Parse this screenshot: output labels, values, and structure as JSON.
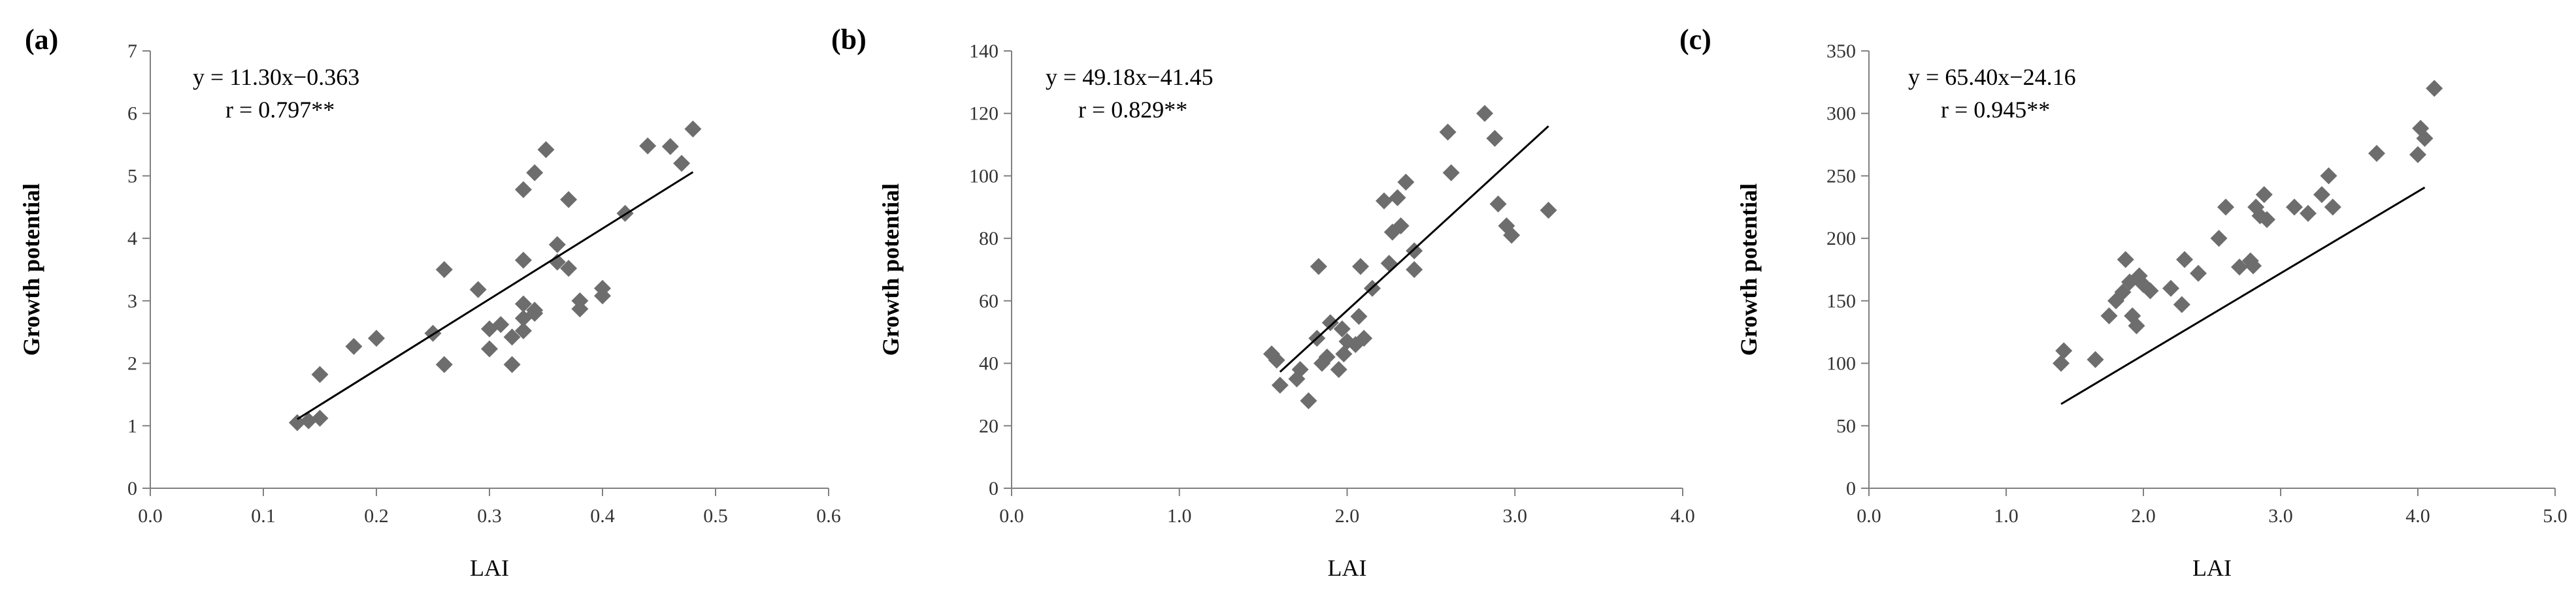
{
  "colors": {
    "point": "#6d6d6d",
    "axis": "#808080",
    "fit": "#000000"
  },
  "chart_data": [
    {
      "type": "scatter",
      "panel_label": "(a)",
      "xlabel": "LAI",
      "ylabel": "Growth potential",
      "xlim": [
        0,
        0.6
      ],
      "ylim": [
        0,
        7
      ],
      "x_ticks": [
        0,
        0.1,
        0.2,
        0.3,
        0.4,
        0.5,
        0.6
      ],
      "x_tick_labels": [
        "0.0",
        "0.1",
        "0.2",
        "0.3",
        "0.4",
        "0.5",
        "0.6"
      ],
      "y_ticks": [
        0,
        1,
        2,
        3,
        4,
        5,
        6,
        7
      ],
      "y_tick_labels": [
        "0",
        "1",
        "2",
        "3",
        "4",
        "5",
        "6",
        "7"
      ],
      "equation": "y = 11.30x−0.363",
      "r_text": "r = 0.797**",
      "fit": {
        "slope": 11.3,
        "intercept": -0.363,
        "x_range": [
          0.13,
          0.48
        ]
      },
      "legend": "none",
      "grid": false,
      "points": [
        [
          0.13,
          1.05
        ],
        [
          0.14,
          1.08
        ],
        [
          0.15,
          1.12
        ],
        [
          0.15,
          1.82
        ],
        [
          0.18,
          2.27
        ],
        [
          0.2,
          2.4
        ],
        [
          0.25,
          2.48
        ],
        [
          0.26,
          1.98
        ],
        [
          0.26,
          3.5
        ],
        [
          0.29,
          3.18
        ],
        [
          0.3,
          2.23
        ],
        [
          0.3,
          2.55
        ],
        [
          0.31,
          2.62
        ],
        [
          0.32,
          1.98
        ],
        [
          0.32,
          2.42
        ],
        [
          0.33,
          2.52
        ],
        [
          0.33,
          2.72
        ],
        [
          0.33,
          2.95
        ],
        [
          0.34,
          2.85
        ],
        [
          0.34,
          2.8
        ],
        [
          0.33,
          3.65
        ],
        [
          0.33,
          4.78
        ],
        [
          0.34,
          5.05
        ],
        [
          0.35,
          5.42
        ],
        [
          0.36,
          3.62
        ],
        [
          0.36,
          3.9
        ],
        [
          0.37,
          3.52
        ],
        [
          0.37,
          4.62
        ],
        [
          0.38,
          2.87
        ],
        [
          0.38,
          3.0
        ],
        [
          0.4,
          3.08
        ],
        [
          0.4,
          3.2
        ],
        [
          0.42,
          4.4
        ],
        [
          0.44,
          5.48
        ],
        [
          0.46,
          5.47
        ],
        [
          0.47,
          5.2
        ],
        [
          0.48,
          5.75
        ]
      ]
    },
    {
      "type": "scatter",
      "panel_label": "(b)",
      "xlabel": "LAI",
      "ylabel": "Growth potential",
      "xlim": [
        0,
        4.0
      ],
      "ylim": [
        0,
        140
      ],
      "x_ticks": [
        0,
        1,
        2,
        3,
        4
      ],
      "x_tick_labels": [
        "0.0",
        "1.0",
        "2.0",
        "3.0",
        "4.0"
      ],
      "y_ticks": [
        0,
        20,
        40,
        60,
        80,
        100,
        120,
        140
      ],
      "y_tick_labels": [
        "0",
        "20",
        "40",
        "60",
        "80",
        "100",
        "120",
        "140"
      ],
      "equation": "y = 49.18x−41.45",
      "r_text": "r = 0.829**",
      "fit": {
        "slope": 49.18,
        "intercept": -41.45,
        "x_range": [
          1.6,
          3.2
        ]
      },
      "legend": "none",
      "grid": false,
      "points": [
        [
          1.55,
          43
        ],
        [
          1.58,
          41
        ],
        [
          1.6,
          33
        ],
        [
          1.7,
          35
        ],
        [
          1.72,
          38
        ],
        [
          1.77,
          28
        ],
        [
          1.82,
          48
        ],
        [
          1.83,
          71
        ],
        [
          1.85,
          40
        ],
        [
          1.88,
          42
        ],
        [
          1.9,
          53
        ],
        [
          1.95,
          38
        ],
        [
          1.97,
          51
        ],
        [
          1.98,
          43
        ],
        [
          2.0,
          47
        ],
        [
          2.05,
          46
        ],
        [
          2.07,
          55
        ],
        [
          2.08,
          71
        ],
        [
          2.1,
          48
        ],
        [
          2.15,
          64
        ],
        [
          2.22,
          92
        ],
        [
          2.25,
          72
        ],
        [
          2.27,
          82
        ],
        [
          2.3,
          93
        ],
        [
          2.32,
          84
        ],
        [
          2.35,
          98
        ],
        [
          2.4,
          76
        ],
        [
          2.4,
          70
        ],
        [
          2.6,
          114
        ],
        [
          2.62,
          101
        ],
        [
          2.82,
          120
        ],
        [
          2.88,
          112
        ],
        [
          2.9,
          91
        ],
        [
          2.95,
          84
        ],
        [
          2.98,
          81
        ],
        [
          3.2,
          89
        ]
      ]
    },
    {
      "type": "scatter",
      "panel_label": "(c)",
      "xlabel": "LAI",
      "ylabel": "Growth potential",
      "xlim": [
        0,
        5.0
      ],
      "ylim": [
        0,
        350
      ],
      "x_ticks": [
        0,
        1,
        2,
        3,
        4,
        5
      ],
      "x_tick_labels": [
        "0.0",
        "1.0",
        "2.0",
        "3.0",
        "4.0",
        "5.0"
      ],
      "y_ticks": [
        0,
        50,
        100,
        150,
        200,
        250,
        300,
        350
      ],
      "y_tick_labels": [
        "0",
        "50",
        "100",
        "150",
        "200",
        "250",
        "300",
        "350"
      ],
      "equation": "y = 65.40x−24.16",
      "r_text": "r = 0.945**",
      "fit": {
        "slope": 65.4,
        "intercept": -24.16,
        "x_range": [
          1.4,
          4.05
        ]
      },
      "legend": "none",
      "grid": false,
      "points": [
        [
          1.4,
          100
        ],
        [
          1.42,
          110
        ],
        [
          1.65,
          103
        ],
        [
          1.75,
          138
        ],
        [
          1.8,
          150
        ],
        [
          1.85,
          157
        ],
        [
          1.87,
          183
        ],
        [
          1.9,
          165
        ],
        [
          1.92,
          138
        ],
        [
          1.95,
          130
        ],
        [
          1.97,
          170
        ],
        [
          2.0,
          163
        ],
        [
          2.05,
          158
        ],
        [
          2.2,
          160
        ],
        [
          2.28,
          147
        ],
        [
          2.3,
          183
        ],
        [
          2.4,
          172
        ],
        [
          2.55,
          200
        ],
        [
          2.6,
          225
        ],
        [
          2.7,
          177
        ],
        [
          2.78,
          182
        ],
        [
          2.8,
          178
        ],
        [
          2.82,
          225
        ],
        [
          2.85,
          218
        ],
        [
          2.88,
          235
        ],
        [
          2.9,
          215
        ],
        [
          3.1,
          225
        ],
        [
          3.2,
          220
        ],
        [
          3.3,
          235
        ],
        [
          3.35,
          250
        ],
        [
          3.38,
          225
        ],
        [
          3.7,
          268
        ],
        [
          4.0,
          267
        ],
        [
          4.02,
          288
        ],
        [
          4.05,
          280
        ],
        [
          4.12,
          320
        ]
      ]
    }
  ]
}
